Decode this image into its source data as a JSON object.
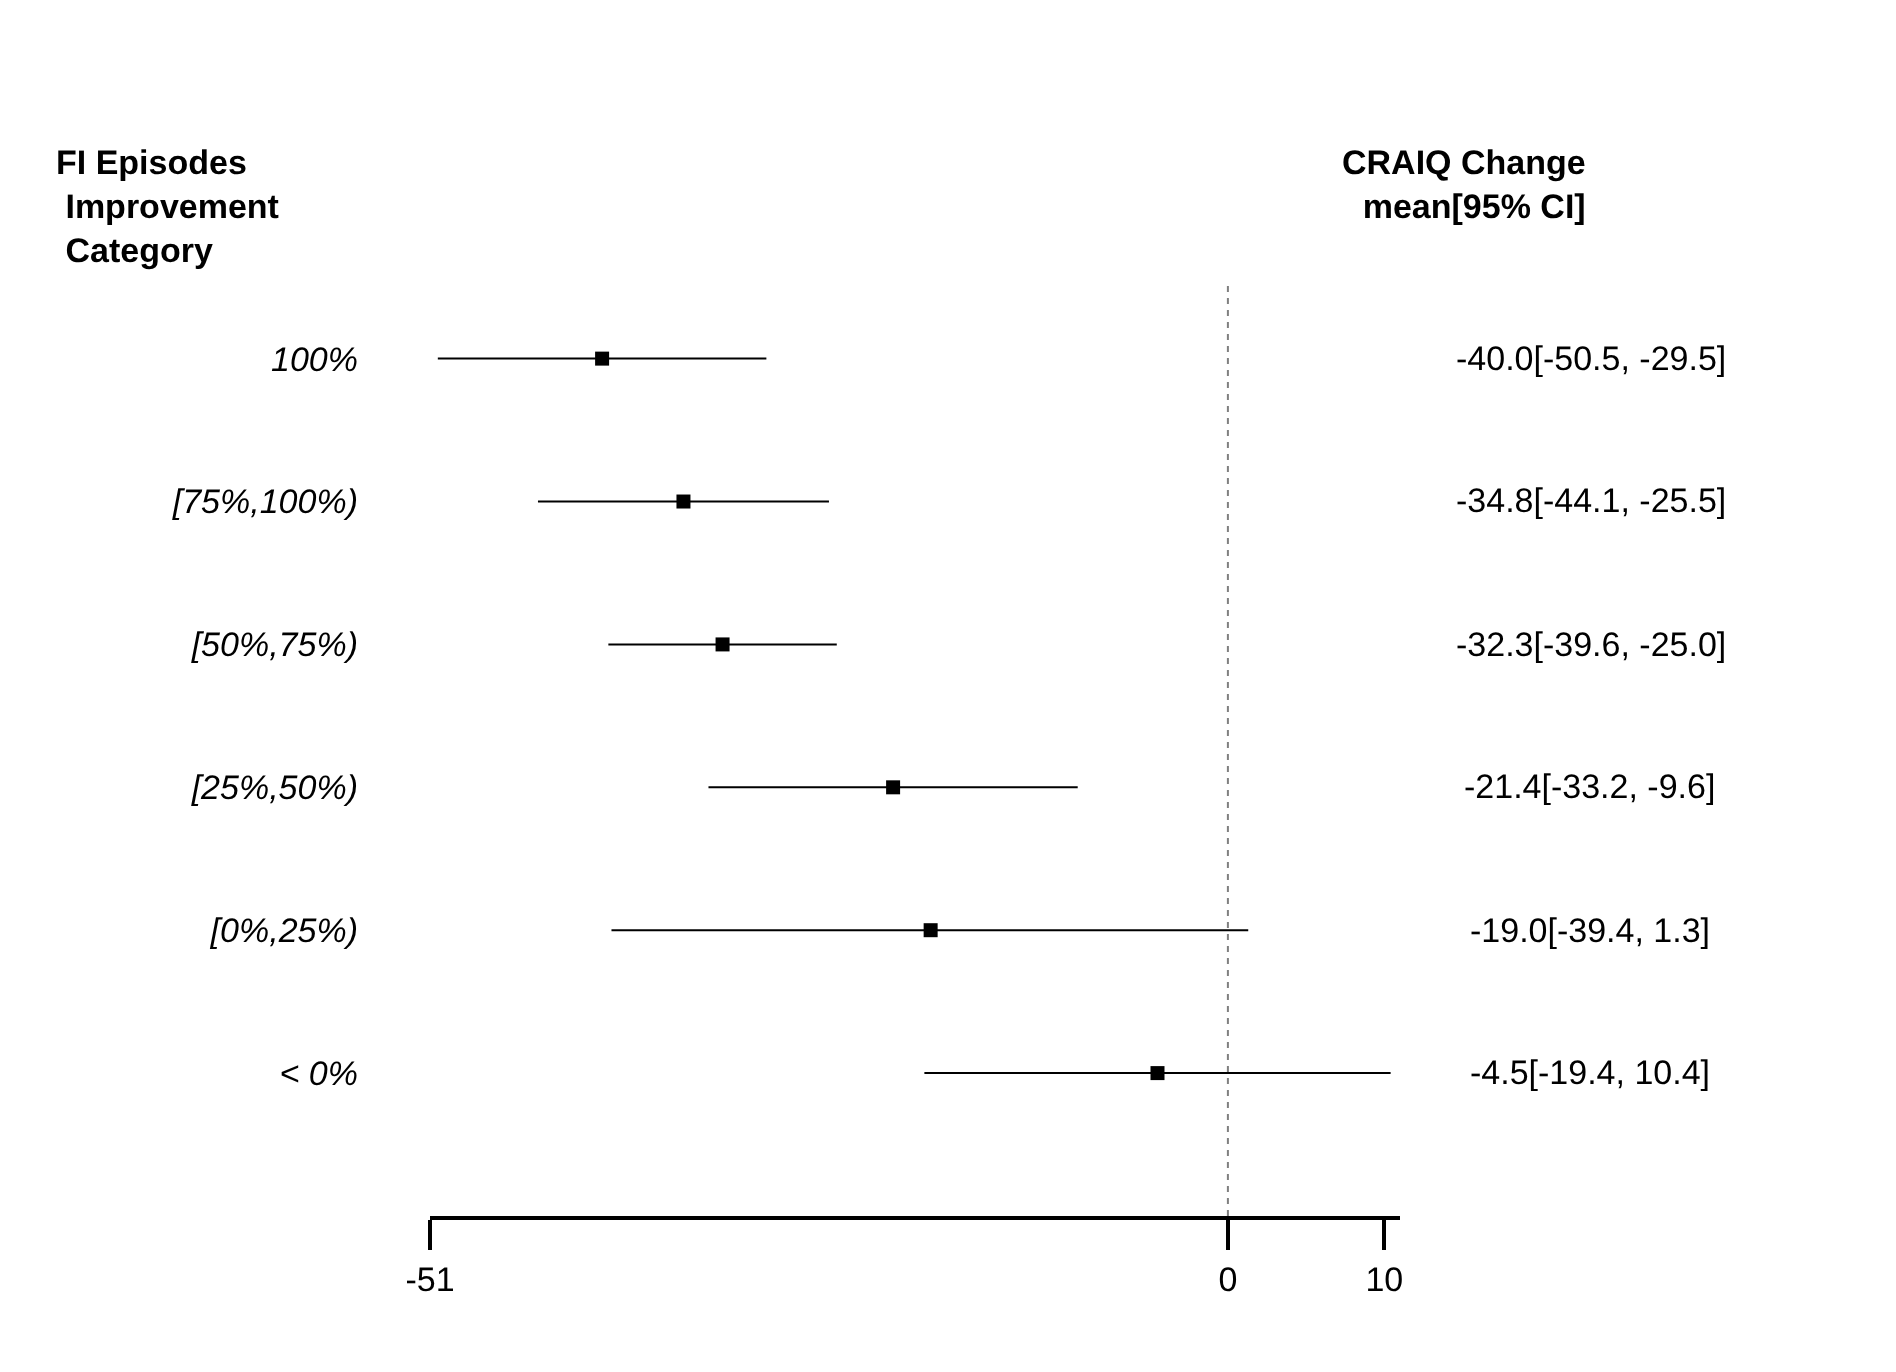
{
  "chart_data": {
    "type": "scatter",
    "orientation": "horizontal",
    "ylabel": "FI Episodes\n Improvement\n Category",
    "categories": [
      "100%",
      "[75%,100%)",
      "[50%,75%)",
      "[25%,50%)",
      "[0%,25%)",
      "< 0%"
    ],
    "values": [
      -40.0,
      -34.8,
      -32.3,
      -21.4,
      -19.0,
      -4.5
    ],
    "errors": [
      [
        -50.5,
        -29.5
      ],
      [
        -44.1,
        -25.5
      ],
      [
        -39.6,
        -25.0
      ],
      [
        -33.2,
        -9.6
      ],
      [
        -39.4,
        1.3
      ],
      [
        -19.4,
        10.4
      ]
    ],
    "value_labels": [
      "-40.0[-50.5, -29.5]",
      "-34.8[-44.1, -25.5]",
      "-32.3[-39.6, -25.0]",
      "-21.4[-33.2, -9.6]",
      "-19.0[-39.4, 1.3]",
      "-4.5[-19.4, 10.4]"
    ],
    "color": "#000000",
    "marker": "square",
    "grid": false,
    "xlim": [
      -51,
      11
    ],
    "xticks": [
      -51,
      0,
      10
    ],
    "ref_lines": [
      {
        "axis": "x",
        "value": 0,
        "color": "#808080",
        "line_style": "dotted"
      }
    ],
    "annotations": [
      "CRAIQ Change\nmean[95% CI]"
    ]
  }
}
